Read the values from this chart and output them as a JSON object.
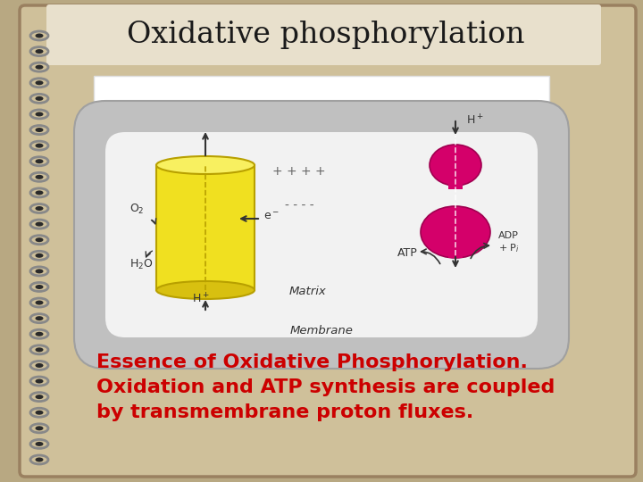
{
  "title": "Oxidative phosphorylation",
  "title_fontsize": 24,
  "title_color": "#1a1a1a",
  "body_text_line1": "Essence of Oxidative Phosphorylation.",
  "body_text_line2": "Oxidation and ATP synthesis are coupled",
  "body_text_line3": "by transmembrane proton fluxes.",
  "body_text_color": "#cc0000",
  "body_fontsize": 16,
  "bg_color": "#b8a882",
  "slide_bg": "#cfc09a",
  "title_bg": "#e8e0cc",
  "diagram_bg": "#ffffff",
  "membrane_fill": "#c0c0c0",
  "membrane_edge": "#a0a0a0",
  "yellow_body": "#f0e020",
  "yellow_top": "#f8f060",
  "yellow_bot": "#d8c010",
  "yellow_edge": "#b8a000",
  "pink_color": "#d4006a",
  "pink_dark": "#a00050",
  "spiral_metal": "#888888",
  "spiral_dark": "#555555",
  "label_color": "#333333",
  "arrow_color": "#333333"
}
